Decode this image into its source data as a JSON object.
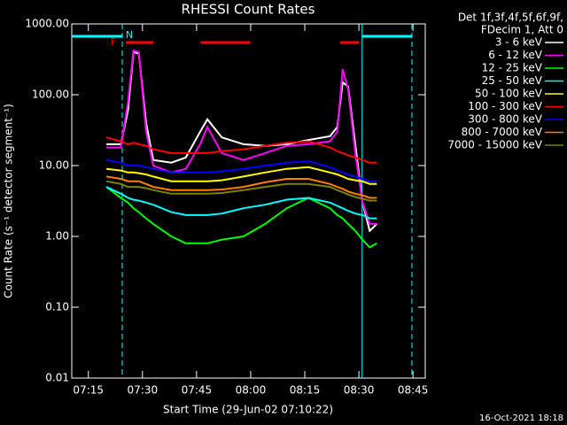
{
  "chart_data": {
    "type": "line",
    "title": "RHESSI Count Rates",
    "xlabel": "Start Time (29-Jun-02 07:10:22)",
    "ylabel": "Count Rate (s⁻¹ detector segment⁻¹)",
    "footer": "16-Oct-2021 18:18",
    "legend_header": [
      "Det 1f,3f,4f,5f,6f,9f,",
      "FDecim 1, Att 0"
    ],
    "log_y": true,
    "xlim": [
      430.4,
      528.4
    ],
    "ylim": [
      0.01,
      1000
    ],
    "xticks": [
      {
        "value": 435,
        "label": "07:15"
      },
      {
        "value": 450,
        "label": "07:30"
      },
      {
        "value": 465,
        "label": "07:45"
      },
      {
        "value": 480,
        "label": "08:00"
      },
      {
        "value": 495,
        "label": "08:15"
      },
      {
        "value": 510,
        "label": "08:30"
      },
      {
        "value": 525,
        "label": "08:45"
      }
    ],
    "yticks": [
      {
        "value": 0.01,
        "label": "0.01"
      },
      {
        "value": 0.1,
        "label": "0.10"
      },
      {
        "value": 1,
        "label": "1.00"
      },
      {
        "value": 10,
        "label": "10.00"
      },
      {
        "value": 100,
        "label": "100.00"
      },
      {
        "value": 1000,
        "label": "1000.00"
      }
    ],
    "flags": [
      {
        "label": "N",
        "color": "#00ffff",
        "spans": [
          [
            430.4,
            444.4
          ],
          [
            510.9,
            524.7
          ]
        ]
      },
      {
        "label": "F",
        "color": "#ff0000",
        "spans": [
          [
            445.4,
            453
          ],
          [
            466.1,
            479.9
          ],
          [
            504.8,
            510
          ]
        ]
      }
    ],
    "x": [
      440,
      444,
      446,
      447.5,
      449,
      451,
      453,
      458,
      462,
      466,
      468,
      472,
      478,
      484,
      490,
      496,
      502,
      504,
      505.5,
      507,
      509,
      511,
      513,
      515
    ],
    "series": [
      {
        "name": "3 - 6 keV",
        "color": "#ffffff",
        "values": [
          20,
          20,
          60,
          400,
          380,
          40,
          12,
          11,
          13,
          30,
          45,
          25,
          20,
          19,
          20,
          23,
          26,
          35,
          150,
          130,
          20,
          3,
          1.2,
          1.5
        ]
      },
      {
        "name": "6 - 12 keV",
        "color": "#ff00ff",
        "values": [
          18,
          18,
          80,
          420,
          400,
          30,
          10,
          8,
          9,
          20,
          35,
          15,
          12,
          15,
          19,
          20,
          22,
          30,
          230,
          120,
          15,
          3,
          1.5,
          1.5
        ]
      },
      {
        "name": "12 - 25 keV",
        "color": "#00ff00",
        "values": [
          5,
          3.5,
          3,
          2.5,
          2.2,
          1.8,
          1.5,
          1,
          0.8,
          0.8,
          0.8,
          0.9,
          1,
          1.5,
          2.5,
          3.5,
          2.5,
          2,
          1.8,
          1.5,
          1.2,
          0.9,
          0.7,
          0.8
        ]
      },
      {
        "name": "25 - 50 keV",
        "color": "#00ffff",
        "values": [
          5,
          4,
          3.5,
          3.3,
          3.2,
          3,
          2.8,
          2.2,
          2,
          2,
          2,
          2.1,
          2.5,
          2.8,
          3.3,
          3.5,
          3,
          2.7,
          2.5,
          2.3,
          2.1,
          2,
          1.8,
          1.8
        ]
      },
      {
        "name": "50 - 100 keV",
        "color": "#ffff00",
        "values": [
          9,
          8.5,
          8,
          8,
          7.8,
          7.5,
          7,
          6,
          6,
          6,
          6,
          6.2,
          7,
          8,
          9,
          9.5,
          8,
          7.5,
          7,
          6.5,
          6.2,
          6,
          5.5,
          5.5
        ]
      },
      {
        "name": "100 - 300 keV",
        "color": "#ff0000",
        "values": [
          25,
          22,
          20,
          21,
          20,
          19,
          17,
          15,
          15,
          15,
          15,
          16,
          17,
          19,
          21,
          22,
          18,
          16,
          15,
          14,
          13,
          12,
          11,
          11
        ]
      },
      {
        "name": "300 - 800 keV",
        "color": "#0000ff",
        "values": [
          12,
          11,
          10,
          10,
          10,
          9.5,
          9,
          8,
          8,
          8,
          8,
          8.3,
          9,
          10,
          11,
          11.5,
          9.5,
          8.5,
          8,
          7.5,
          7,
          6.5,
          6,
          6
        ]
      },
      {
        "name": "800 - 7000 keV",
        "color": "#ff8000",
        "values": [
          7,
          6.5,
          6,
          6,
          6,
          5.5,
          5,
          4.5,
          4.5,
          4.5,
          4.5,
          4.6,
          5,
          5.8,
          6.5,
          6.5,
          5.5,
          5,
          4.7,
          4.3,
          4,
          3.8,
          3.5,
          3.5
        ]
      },
      {
        "name": "7000 - 15000 keV",
        "color": "#808000",
        "values": [
          6,
          5.5,
          5,
          5,
          5,
          4.8,
          4.5,
          4,
          4,
          4,
          4,
          4.1,
          4.5,
          5,
          5.5,
          5.5,
          5,
          4.5,
          4.2,
          3.9,
          3.6,
          3.4,
          3.2,
          3.2
        ]
      }
    ]
  }
}
